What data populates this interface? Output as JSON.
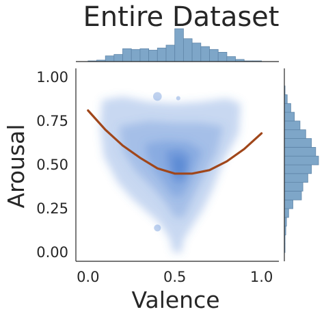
{
  "chart_data": {
    "type": "scatter",
    "title": "Entire Dataset",
    "xlabel": "Valence",
    "ylabel": "Arousal",
    "xlim": [
      -0.07,
      1.1
    ],
    "ylim": [
      -0.05,
      1.05
    ],
    "xticks": [
      0.0,
      0.5,
      1.0
    ],
    "xtick_labels": [
      "0.0",
      "0.5",
      "1.0"
    ],
    "yticks": [
      0.0,
      0.25,
      0.5,
      0.75,
      1.0
    ],
    "ytick_labels": [
      "0.00",
      "0.25",
      "0.50",
      "0.75",
      "1.00"
    ],
    "grid": false,
    "colors": {
      "density": "#4a7fd0",
      "fit_line": "#a0461a",
      "histogram": "#7ea6c8",
      "histogram_edge": "#5f86a8",
      "axis": "#262626"
    },
    "fit_curve": {
      "kind": "quadratic",
      "x": [
        0.0,
        0.1,
        0.2,
        0.3,
        0.4,
        0.5,
        0.6,
        0.7,
        0.8,
        0.9,
        1.0
      ],
      "y": [
        0.81,
        0.7,
        0.61,
        0.54,
        0.48,
        0.45,
        0.45,
        0.47,
        0.52,
        0.59,
        0.68
      ]
    },
    "density_regions": [
      {
        "level": 1,
        "polygon": [
          [
            0.08,
            0.87
          ],
          [
            0.2,
            0.89
          ],
          [
            0.35,
            0.86
          ],
          [
            0.5,
            0.85
          ],
          [
            0.65,
            0.86
          ],
          [
            0.8,
            0.88
          ],
          [
            0.88,
            0.85
          ],
          [
            0.87,
            0.68
          ],
          [
            0.78,
            0.52
          ],
          [
            0.72,
            0.36
          ],
          [
            0.66,
            0.24
          ],
          [
            0.6,
            0.15
          ],
          [
            0.55,
            0.07
          ],
          [
            0.54,
            0.0
          ],
          [
            0.49,
            0.0
          ],
          [
            0.47,
            0.08
          ],
          [
            0.41,
            0.17
          ],
          [
            0.33,
            0.24
          ],
          [
            0.25,
            0.31
          ],
          [
            0.17,
            0.4
          ],
          [
            0.09,
            0.55
          ],
          [
            0.07,
            0.72
          ]
        ]
      },
      {
        "level": 2,
        "polygon": [
          [
            0.18,
            0.72
          ],
          [
            0.35,
            0.75
          ],
          [
            0.5,
            0.74
          ],
          [
            0.65,
            0.74
          ],
          [
            0.78,
            0.72
          ],
          [
            0.74,
            0.57
          ],
          [
            0.66,
            0.42
          ],
          [
            0.6,
            0.3
          ],
          [
            0.55,
            0.2
          ],
          [
            0.5,
            0.2
          ],
          [
            0.45,
            0.28
          ],
          [
            0.37,
            0.37
          ],
          [
            0.27,
            0.47
          ],
          [
            0.2,
            0.58
          ]
        ]
      },
      {
        "level": 3,
        "polygon": [
          [
            0.33,
            0.62
          ],
          [
            0.45,
            0.64
          ],
          [
            0.58,
            0.63
          ],
          [
            0.66,
            0.58
          ],
          [
            0.62,
            0.48
          ],
          [
            0.58,
            0.39
          ],
          [
            0.54,
            0.32
          ],
          [
            0.49,
            0.32
          ],
          [
            0.44,
            0.39
          ],
          [
            0.38,
            0.47
          ],
          [
            0.34,
            0.55
          ]
        ]
      },
      {
        "level": 4,
        "polygon": [
          [
            0.45,
            0.58
          ],
          [
            0.53,
            0.59
          ],
          [
            0.59,
            0.55
          ],
          [
            0.58,
            0.47
          ],
          [
            0.55,
            0.4
          ],
          [
            0.5,
            0.4
          ],
          [
            0.47,
            0.46
          ],
          [
            0.45,
            0.52
          ]
        ]
      },
      {
        "level": 5,
        "polygon": [
          [
            0.49,
            0.54
          ],
          [
            0.53,
            0.55
          ],
          [
            0.56,
            0.51
          ],
          [
            0.55,
            0.46
          ],
          [
            0.52,
            0.43
          ],
          [
            0.5,
            0.45
          ]
        ]
      }
    ],
    "density_blobs": [
      {
        "x": 0.4,
        "y": 0.89,
        "r": 0.025
      },
      {
        "x": 0.52,
        "y": 0.88,
        "r": 0.012
      },
      {
        "x": 0.4,
        "y": 0.14,
        "r": 0.02
      }
    ],
    "marginal_x": {
      "bin_edges": [
        0.0,
        0.05,
        0.1,
        0.15,
        0.2,
        0.25,
        0.3,
        0.35,
        0.4,
        0.45,
        0.5,
        0.55,
        0.6,
        0.65,
        0.7,
        0.75,
        0.8,
        0.85,
        0.9,
        0.95,
        1.0
      ],
      "counts": [
        1,
        2,
        8,
        10,
        18,
        17,
        18,
        16,
        19,
        23,
        46,
        32,
        26,
        21,
        17,
        13,
        7,
        3,
        1,
        1
      ]
    },
    "marginal_y": {
      "bin_edges": [
        0.0,
        0.05,
        0.1,
        0.15,
        0.2,
        0.25,
        0.3,
        0.35,
        0.4,
        0.45,
        0.5,
        0.55,
        0.6,
        0.65,
        0.7,
        0.75,
        0.8,
        0.85,
        0.9,
        0.95,
        1.0
      ],
      "counts": [
        1,
        1,
        2,
        3,
        6,
        12,
        24,
        26,
        33,
        38,
        48,
        44,
        38,
        30,
        22,
        14,
        9,
        4,
        1,
        0
      ]
    }
  }
}
